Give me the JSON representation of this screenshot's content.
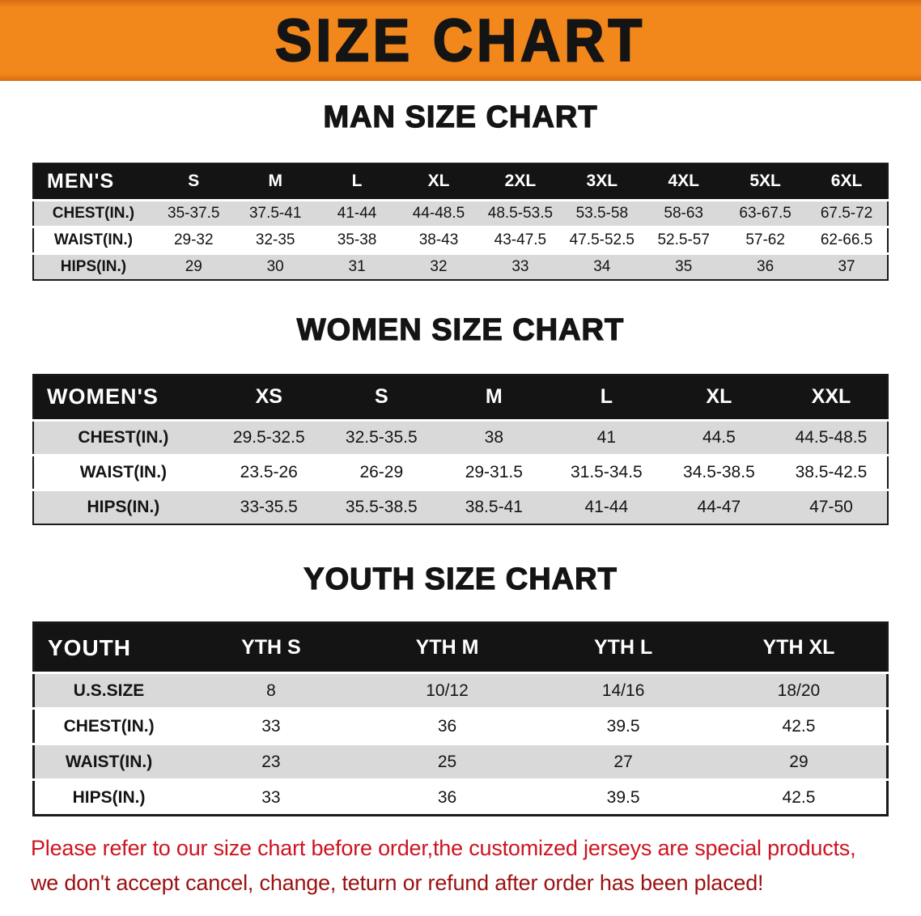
{
  "banner": {
    "title": "SIZE CHART"
  },
  "sections": [
    {
      "id": "men",
      "heading": "MAN SIZE CHART",
      "table": {
        "header": [
          "MEN'S",
          "S",
          "M",
          "L",
          "XL",
          "2XL",
          "3XL",
          "4XL",
          "5XL",
          "6XL"
        ],
        "rows": [
          {
            "label": "CHEST(IN.)",
            "values": [
              "35-37.5",
              "37.5-41",
              "41-44",
              "44-48.5",
              "48.5-53.5",
              "53.5-58",
              "58-63",
              "63-67.5",
              "67.5-72"
            ]
          },
          {
            "label": "WAIST(IN.)",
            "values": [
              "29-32",
              "32-35",
              "35-38",
              "38-43",
              "43-47.5",
              "47.5-52.5",
              "52.5-57",
              "57-62",
              "62-66.5"
            ]
          },
          {
            "label": "HIPS(IN.)",
            "values": [
              "29",
              "30",
              "31",
              "32",
              "33",
              "34",
              "35",
              "36",
              "37"
            ]
          }
        ]
      }
    },
    {
      "id": "women",
      "heading": "WOMEN SIZE CHART",
      "table": {
        "header": [
          "WOMEN'S",
          "XS",
          "S",
          "M",
          "L",
          "XL",
          "XXL"
        ],
        "rows": [
          {
            "label": "CHEST(IN.)",
            "values": [
              "29.5-32.5",
              "32.5-35.5",
              "38",
              "41",
              "44.5",
              "44.5-48.5"
            ]
          },
          {
            "label": "WAIST(IN.)",
            "values": [
              "23.5-26",
              "26-29",
              "29-31.5",
              "31.5-34.5",
              "34.5-38.5",
              "38.5-42.5"
            ]
          },
          {
            "label": "HIPS(IN.)",
            "values": [
              "33-35.5",
              "35.5-38.5",
              "38.5-41",
              "41-44",
              "44-47",
              "47-50"
            ]
          }
        ]
      }
    },
    {
      "id": "youth",
      "heading": "YOUTH SIZE CHART",
      "table": {
        "header": [
          "YOUTH",
          "YTH S",
          "YTH M",
          "YTH L",
          "YTH XL"
        ],
        "rows": [
          {
            "label": "U.S.SIZE",
            "values": [
              "8",
              "10/12",
              "14/16",
              "18/20"
            ]
          },
          {
            "label": "CHEST(IN.)",
            "values": [
              "33",
              "36",
              "39.5",
              "42.5"
            ]
          },
          {
            "label": "WAIST(IN.)",
            "values": [
              "23",
              "25",
              "27",
              "29"
            ]
          },
          {
            "label": "HIPS(IN.)",
            "values": [
              "33",
              "36",
              "39.5",
              "42.5"
            ]
          }
        ]
      }
    }
  ],
  "footer": {
    "line1": "Please refer to our size chart before order,the customized jerseys are special products,",
    "line2": "we don't accept cancel, change, teturn or refund after order has been placed!"
  },
  "colors": {
    "banner_bg": "#f2871b",
    "table_header_bg": "#141414",
    "row_alt_bg": "#d9d9d9",
    "footer_line1": "#cd1420",
    "footer_line2": "#9b1112"
  }
}
